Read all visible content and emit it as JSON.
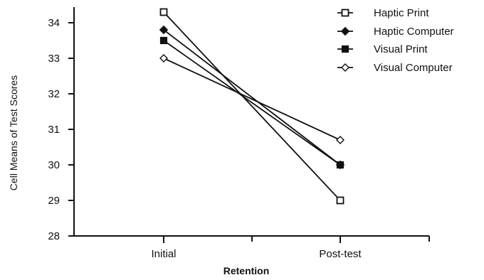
{
  "chart_data": {
    "type": "line",
    "categories": [
      "Initial",
      "Post-test"
    ],
    "xlabel": "Retention",
    "ylabel": "Cell Means of Test Scores",
    "ylim": [
      28,
      34.5
    ],
    "yticks": [
      28,
      29,
      30,
      31,
      32,
      33,
      34
    ],
    "grid": false,
    "legend_position": "top-right",
    "series": [
      {
        "name": "Haptic Print",
        "marker": "open-square",
        "values": [
          34.3,
          29.0
        ]
      },
      {
        "name": "Haptic Computer",
        "marker": "filled-diamond",
        "values": [
          33.8,
          30.0
        ]
      },
      {
        "name": "Visual Print",
        "marker": "filled-square",
        "values": [
          33.5,
          30.0
        ]
      },
      {
        "name": "Visual Computer",
        "marker": "open-diamond",
        "values": [
          33.0,
          30.7
        ]
      }
    ]
  }
}
